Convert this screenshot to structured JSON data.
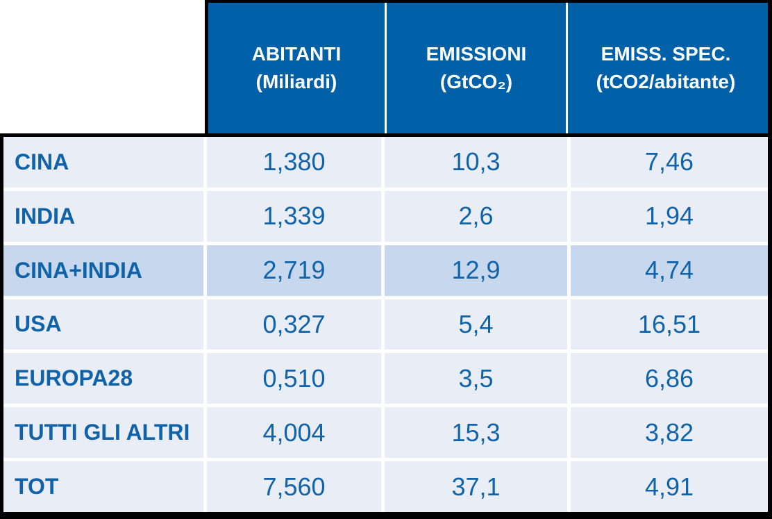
{
  "colors": {
    "header_bg": "#0061A8",
    "header_text": "#FFFFFF",
    "row_bg": "#E9EDF5",
    "highlight_row_bg": "#C6D7EE",
    "text_blue": "#1063A8",
    "border": "#000000",
    "gridline": "#FFFFFF"
  },
  "table": {
    "header": [
      {
        "line1": "ABITANTI",
        "line2": "(Miliardi)"
      },
      {
        "line1": "EMISSIONI",
        "line2": "(GtCO₂)"
      },
      {
        "line1": "EMISS. SPEC.",
        "line2": "(tCO2/abitante)"
      }
    ],
    "rows": [
      {
        "label": "CINA",
        "abitanti": "1,380",
        "emissioni": "10,3",
        "emiss_spec": "7,46",
        "highlight": false
      },
      {
        "label": "INDIA",
        "abitanti": "1,339",
        "emissioni": "2,6",
        "emiss_spec": "1,94",
        "highlight": false
      },
      {
        "label": "CINA+INDIA",
        "abitanti": "2,719",
        "emissioni": "12,9",
        "emiss_spec": "4,74",
        "highlight": true
      },
      {
        "label": "USA",
        "abitanti": "0,327",
        "emissioni": "5,4",
        "emiss_spec": "16,51",
        "highlight": false
      },
      {
        "label": "EUROPA28",
        "abitanti": "0,510",
        "emissioni": "3,5",
        "emiss_spec": "6,86",
        "highlight": false
      },
      {
        "label": "TUTTI GLI ALTRI",
        "abitanti": "4,004",
        "emissioni": "15,3",
        "emiss_spec": "3,82",
        "highlight": false
      },
      {
        "label": "TOT",
        "abitanti": "7,560",
        "emissioni": "37,1",
        "emiss_spec": "4,91",
        "highlight": false
      }
    ]
  },
  "chart_data": {
    "type": "table",
    "title": "",
    "categories": [
      "CINA",
      "INDIA",
      "CINA+INDIA",
      "USA",
      "EUROPA28",
      "TUTTI GLI ALTRI",
      "TOT"
    ],
    "series": [
      {
        "name": "ABITANTI (Miliardi)",
        "values": [
          1.38,
          1.339,
          2.719,
          0.327,
          0.51,
          4.004,
          7.56
        ]
      },
      {
        "name": "EMISSIONI (GtCO₂)",
        "values": [
          10.3,
          2.6,
          12.9,
          5.4,
          3.5,
          15.3,
          37.1
        ]
      },
      {
        "name": "EMISS. SPEC. (tCO2/abitante)",
        "values": [
          7.46,
          1.94,
          4.74,
          16.51,
          6.86,
          3.82,
          4.91
        ]
      }
    ],
    "notes": "highlighted row: CINA+INDIA"
  }
}
